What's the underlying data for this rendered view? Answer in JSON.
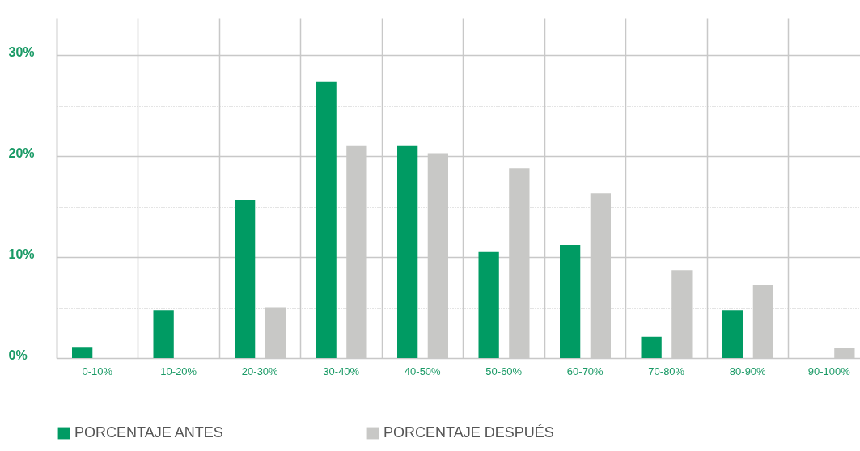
{
  "chart_data": {
    "type": "bar",
    "categories": [
      "0-10%",
      "10-20%",
      "20-30%",
      "30-40%",
      "40-50%",
      "50-60%",
      "60-70%",
      "70-80%",
      "80-90%",
      "90-100%"
    ],
    "series": [
      {
        "name": "PORCENTAJE ANTES",
        "color": "#009b63",
        "values": [
          1.1,
          4.7,
          15.6,
          27.4,
          21,
          10.5,
          11.2,
          2.1,
          4.7,
          0
        ]
      },
      {
        "name": "PORCENTAJE DESPUÉS",
        "color": "#c8c8c6",
        "values": [
          0,
          0,
          5,
          21,
          20.3,
          18.8,
          16.3,
          8.7,
          7.2,
          1
        ]
      }
    ],
    "ylim": [
      0,
      33.7
    ],
    "yticks": [
      {
        "value": 0,
        "label": "0%"
      },
      {
        "value": 5,
        "label": null
      },
      {
        "value": 10,
        "label": "10%"
      },
      {
        "value": 15,
        "label": null
      },
      {
        "value": 20,
        "label": "20%"
      },
      {
        "value": 25,
        "label": null
      },
      {
        "value": 30,
        "label": "30%"
      }
    ],
    "grid": true,
    "legend": "bottom"
  }
}
